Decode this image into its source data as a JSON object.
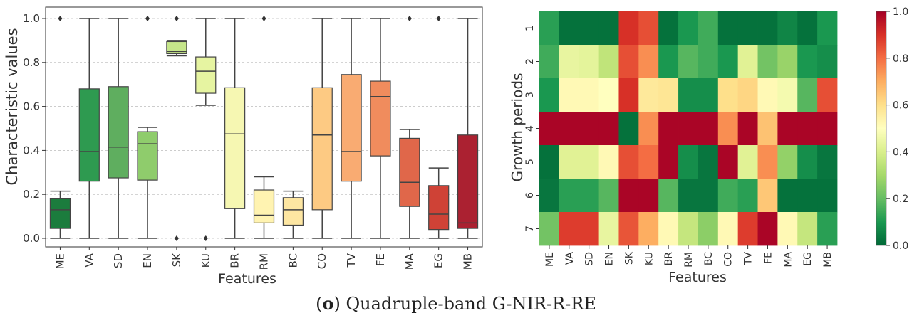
{
  "chart_data": [
    {
      "type": "box",
      "ylabel": "Characteristic values",
      "xlabel": "Features",
      "ylim": [
        0.0,
        1.0
      ],
      "yticks": [
        "0.0",
        "0.2",
        "0.4",
        "0.6",
        "0.8",
        "1.0"
      ],
      "grid": "horizontal",
      "categories": [
        "ME",
        "VA",
        "SD",
        "EN",
        "SK",
        "KU",
        "BR",
        "RM",
        "BC",
        "CO",
        "TV",
        "FE",
        "MA",
        "EG",
        "MB"
      ],
      "colors": [
        "#1b7c3d",
        "#2e9a50",
        "#5fae5f",
        "#8fcc6c",
        "#c6e68a",
        "#e6f4a1",
        "#f6f7b2",
        "#fff3b1",
        "#fde6a2",
        "#fdca83",
        "#f9ab72",
        "#f08c5d",
        "#e0674a",
        "#cf4236",
        "#ab2131"
      ],
      "boxes": [
        {
          "min": 0.0,
          "q1": 0.045,
          "median": 0.13,
          "q3": 0.18,
          "max": 0.215,
          "outliers": [
            1.0
          ]
        },
        {
          "min": 0.0,
          "q1": 0.26,
          "median": 0.395,
          "q3": 0.68,
          "max": 1.0,
          "outliers": []
        },
        {
          "min": 0.0,
          "q1": 0.275,
          "median": 0.415,
          "q3": 0.69,
          "max": 1.0,
          "outliers": []
        },
        {
          "min": 0.0,
          "q1": 0.265,
          "median": 0.43,
          "q3": 0.485,
          "max": 0.505,
          "outliers": [
            1.0
          ]
        },
        {
          "min": 0.83,
          "q1": 0.84,
          "median": 0.85,
          "q3": 0.895,
          "max": 0.9,
          "outliers": [
            1.0,
            0.0
          ]
        },
        {
          "min": 0.605,
          "q1": 0.66,
          "median": 0.76,
          "q3": 0.825,
          "max": 1.0,
          "outliers": [
            0.0
          ]
        },
        {
          "min": 0.0,
          "q1": 0.135,
          "median": 0.475,
          "q3": 0.685,
          "max": 1.0,
          "outliers": []
        },
        {
          "min": 0.0,
          "q1": 0.07,
          "median": 0.105,
          "q3": 0.22,
          "max": 0.28,
          "outliers": [
            1.0
          ]
        },
        {
          "min": 0.0,
          "q1": 0.06,
          "median": 0.13,
          "q3": 0.185,
          "max": 0.215,
          "outliers": []
        },
        {
          "min": 0.0,
          "q1": 0.13,
          "median": 0.47,
          "q3": 0.685,
          "max": 1.0,
          "outliers": []
        },
        {
          "min": 0.0,
          "q1": 0.26,
          "median": 0.395,
          "q3": 0.745,
          "max": 1.0,
          "outliers": []
        },
        {
          "min": 0.0,
          "q1": 0.375,
          "median": 0.645,
          "q3": 0.715,
          "max": 1.0,
          "outliers": []
        },
        {
          "min": 0.0,
          "q1": 0.145,
          "median": 0.255,
          "q3": 0.455,
          "max": 0.495,
          "outliers": [
            1.0
          ]
        },
        {
          "min": 0.0,
          "q1": 0.04,
          "median": 0.11,
          "q3": 0.24,
          "max": 0.32,
          "outliers": [
            1.0
          ]
        },
        {
          "min": 0.0,
          "q1": 0.045,
          "median": 0.07,
          "q3": 0.47,
          "max": 1.0,
          "outliers": []
        }
      ]
    },
    {
      "type": "heatmap",
      "ylabel": "Growth periods",
      "xlabel": "Features",
      "x": [
        "ME",
        "VA",
        "SD",
        "EN",
        "SK",
        "KU",
        "BR",
        "RM",
        "BC",
        "CO",
        "TV",
        "FE",
        "MA",
        "EG",
        "MB"
      ],
      "y": [
        "1",
        "2",
        "3",
        "4",
        "5",
        "6",
        "7"
      ],
      "colorbar": {
        "min": 0.0,
        "max": 1.0,
        "ticks": [
          "0.0",
          "0.2",
          "0.4",
          "0.6",
          "0.8",
          "1.0"
        ],
        "colormap": "RdYlGn_r"
      },
      "values": [
        [
          0.12,
          0.02,
          0.02,
          0.02,
          0.9,
          0.85,
          0.02,
          0.1,
          0.15,
          0.02,
          0.02,
          0.02,
          0.06,
          0.02,
          0.1
        ],
        [
          0.15,
          0.44,
          0.43,
          0.35,
          0.85,
          0.75,
          0.1,
          0.18,
          0.15,
          0.1,
          0.42,
          0.22,
          0.28,
          0.1,
          0.08
        ],
        [
          0.1,
          0.52,
          0.52,
          0.5,
          0.9,
          0.57,
          0.58,
          0.08,
          0.08,
          0.6,
          0.62,
          0.52,
          0.47,
          0.18,
          0.85
        ],
        [
          0.99,
          0.99,
          0.99,
          0.99,
          0.02,
          0.75,
          0.99,
          0.99,
          0.99,
          0.75,
          0.99,
          0.66,
          0.99,
          0.99,
          0.99
        ],
        [
          0.02,
          0.42,
          0.42,
          0.52,
          0.85,
          0.8,
          0.99,
          0.08,
          0.03,
          0.99,
          0.42,
          0.75,
          0.27,
          0.08,
          0.03
        ],
        [
          0.03,
          0.12,
          0.12,
          0.18,
          0.99,
          0.99,
          0.18,
          0.03,
          0.03,
          0.15,
          0.12,
          0.65,
          0.02,
          0.02,
          0.02
        ],
        [
          0.22,
          0.88,
          0.88,
          0.44,
          0.84,
          0.7,
          0.52,
          0.36,
          0.26,
          0.52,
          0.88,
          0.99,
          0.52,
          0.36,
          0.12
        ]
      ]
    }
  ],
  "caption": {
    "label": "o",
    "text": " Quadruple-band G-NIR-R-RE"
  }
}
